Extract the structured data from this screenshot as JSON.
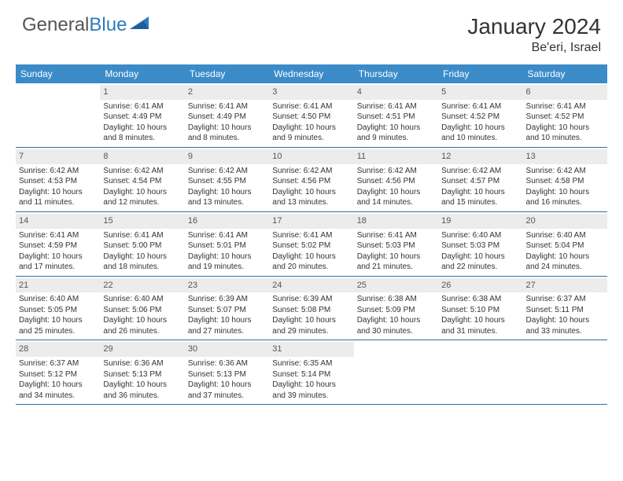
{
  "logo": {
    "text_gray": "General",
    "text_blue": "Blue"
  },
  "title": "January 2024",
  "location": "Be'eri, Israel",
  "colors": {
    "header_bg": "#3b8bc9",
    "header_text": "#ffffff",
    "daynum_bg": "#ececec",
    "border": "#2f6fa3",
    "body_text": "#333333",
    "logo_gray": "#555555",
    "logo_blue": "#2f7abf",
    "page_bg": "#ffffff"
  },
  "dayNames": [
    "Sunday",
    "Monday",
    "Tuesday",
    "Wednesday",
    "Thursday",
    "Friday",
    "Saturday"
  ],
  "weeks": [
    [
      null,
      {
        "n": "1",
        "sr": "6:41 AM",
        "ss": "4:49 PM",
        "dl": "10 hours and 8 minutes."
      },
      {
        "n": "2",
        "sr": "6:41 AM",
        "ss": "4:49 PM",
        "dl": "10 hours and 8 minutes."
      },
      {
        "n": "3",
        "sr": "6:41 AM",
        "ss": "4:50 PM",
        "dl": "10 hours and 9 minutes."
      },
      {
        "n": "4",
        "sr": "6:41 AM",
        "ss": "4:51 PM",
        "dl": "10 hours and 9 minutes."
      },
      {
        "n": "5",
        "sr": "6:41 AM",
        "ss": "4:52 PM",
        "dl": "10 hours and 10 minutes."
      },
      {
        "n": "6",
        "sr": "6:41 AM",
        "ss": "4:52 PM",
        "dl": "10 hours and 10 minutes."
      }
    ],
    [
      {
        "n": "7",
        "sr": "6:42 AM",
        "ss": "4:53 PM",
        "dl": "10 hours and 11 minutes."
      },
      {
        "n": "8",
        "sr": "6:42 AM",
        "ss": "4:54 PM",
        "dl": "10 hours and 12 minutes."
      },
      {
        "n": "9",
        "sr": "6:42 AM",
        "ss": "4:55 PM",
        "dl": "10 hours and 13 minutes."
      },
      {
        "n": "10",
        "sr": "6:42 AM",
        "ss": "4:56 PM",
        "dl": "10 hours and 13 minutes."
      },
      {
        "n": "11",
        "sr": "6:42 AM",
        "ss": "4:56 PM",
        "dl": "10 hours and 14 minutes."
      },
      {
        "n": "12",
        "sr": "6:42 AM",
        "ss": "4:57 PM",
        "dl": "10 hours and 15 minutes."
      },
      {
        "n": "13",
        "sr": "6:42 AM",
        "ss": "4:58 PM",
        "dl": "10 hours and 16 minutes."
      }
    ],
    [
      {
        "n": "14",
        "sr": "6:41 AM",
        "ss": "4:59 PM",
        "dl": "10 hours and 17 minutes."
      },
      {
        "n": "15",
        "sr": "6:41 AM",
        "ss": "5:00 PM",
        "dl": "10 hours and 18 minutes."
      },
      {
        "n": "16",
        "sr": "6:41 AM",
        "ss": "5:01 PM",
        "dl": "10 hours and 19 minutes."
      },
      {
        "n": "17",
        "sr": "6:41 AM",
        "ss": "5:02 PM",
        "dl": "10 hours and 20 minutes."
      },
      {
        "n": "18",
        "sr": "6:41 AM",
        "ss": "5:03 PM",
        "dl": "10 hours and 21 minutes."
      },
      {
        "n": "19",
        "sr": "6:40 AM",
        "ss": "5:03 PM",
        "dl": "10 hours and 22 minutes."
      },
      {
        "n": "20",
        "sr": "6:40 AM",
        "ss": "5:04 PM",
        "dl": "10 hours and 24 minutes."
      }
    ],
    [
      {
        "n": "21",
        "sr": "6:40 AM",
        "ss": "5:05 PM",
        "dl": "10 hours and 25 minutes."
      },
      {
        "n": "22",
        "sr": "6:40 AM",
        "ss": "5:06 PM",
        "dl": "10 hours and 26 minutes."
      },
      {
        "n": "23",
        "sr": "6:39 AM",
        "ss": "5:07 PM",
        "dl": "10 hours and 27 minutes."
      },
      {
        "n": "24",
        "sr": "6:39 AM",
        "ss": "5:08 PM",
        "dl": "10 hours and 29 minutes."
      },
      {
        "n": "25",
        "sr": "6:38 AM",
        "ss": "5:09 PM",
        "dl": "10 hours and 30 minutes."
      },
      {
        "n": "26",
        "sr": "6:38 AM",
        "ss": "5:10 PM",
        "dl": "10 hours and 31 minutes."
      },
      {
        "n": "27",
        "sr": "6:37 AM",
        "ss": "5:11 PM",
        "dl": "10 hours and 33 minutes."
      }
    ],
    [
      {
        "n": "28",
        "sr": "6:37 AM",
        "ss": "5:12 PM",
        "dl": "10 hours and 34 minutes."
      },
      {
        "n": "29",
        "sr": "6:36 AM",
        "ss": "5:13 PM",
        "dl": "10 hours and 36 minutes."
      },
      {
        "n": "30",
        "sr": "6:36 AM",
        "ss": "5:13 PM",
        "dl": "10 hours and 37 minutes."
      },
      {
        "n": "31",
        "sr": "6:35 AM",
        "ss": "5:14 PM",
        "dl": "10 hours and 39 minutes."
      },
      null,
      null,
      null
    ]
  ],
  "labels": {
    "sunrise": "Sunrise:",
    "sunset": "Sunset:",
    "daylight": "Daylight:"
  }
}
